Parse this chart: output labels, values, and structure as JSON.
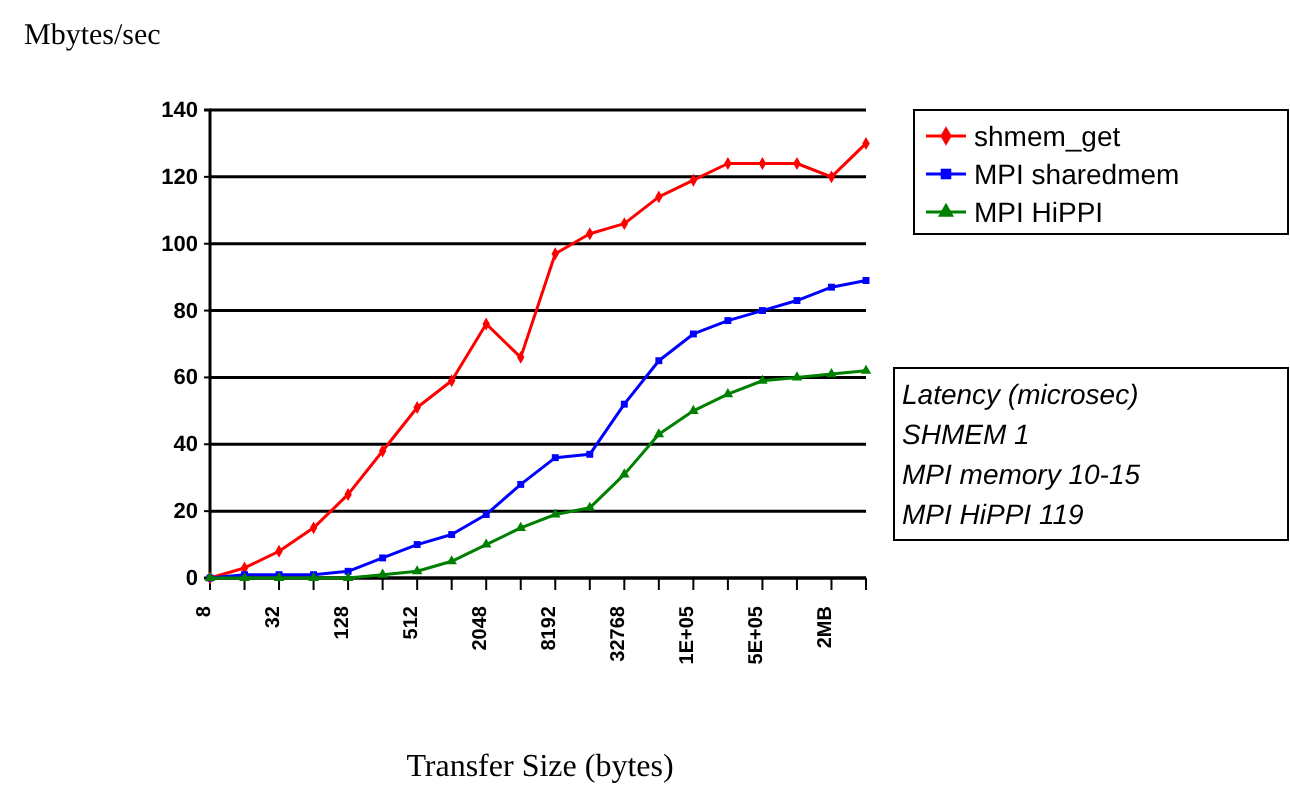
{
  "chart_data": {
    "type": "line",
    "ylabel": "Mbytes/sec",
    "xlabel": "Transfer Size (bytes)",
    "categories": [
      "8",
      null,
      "32",
      null,
      "128",
      null,
      "512",
      null,
      "2048",
      null,
      "8192",
      null,
      "32768",
      null,
      "1E+05",
      null,
      "5E+05",
      null,
      "2MB",
      null
    ],
    "series": [
      {
        "name": "shmem_get",
        "color": "#ff0000",
        "marker": "diamond",
        "values": [
          0,
          3,
          8,
          15,
          25,
          38,
          51,
          59,
          76,
          66,
          97,
          103,
          106,
          114,
          119,
          124,
          124,
          124,
          120,
          130
        ]
      },
      {
        "name": "MPI sharedmem",
        "color": "#0000ff",
        "marker": "square",
        "values": [
          0,
          1,
          1,
          1,
          2,
          6,
          10,
          13,
          19,
          28,
          36,
          37,
          52,
          65,
          73,
          77,
          80,
          83,
          87,
          89
        ]
      },
      {
        "name": "MPI HiPPI",
        "color": "#008000",
        "marker": "triangle",
        "values": [
          0,
          0,
          0,
          0,
          0,
          1,
          2,
          5,
          10,
          15,
          19,
          21,
          31,
          43,
          50,
          55,
          59,
          60,
          61,
          62
        ]
      }
    ],
    "ylim": [
      0,
      140
    ],
    "yticks": [
      0,
      20,
      40,
      60,
      80,
      100,
      120,
      140
    ],
    "grid": "y",
    "legend": "right",
    "line_style": "solid",
    "annotations": [
      "Latency (microsec)",
      "SHMEM 1",
      "MPI memory 10-15",
      "MPI HiPPI 119"
    ]
  }
}
